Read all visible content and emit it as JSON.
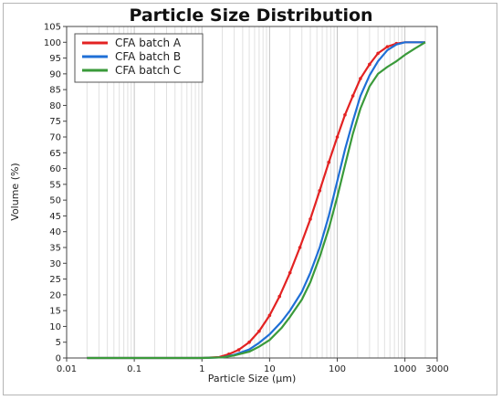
{
  "chart_data": {
    "type": "line",
    "title": "Particle Size Distribution",
    "xlabel": "Particle Size (µm)",
    "ylabel": "Volume (%)",
    "x_scale": "log",
    "xlim": [
      0.01,
      3000
    ],
    "ylim": [
      0,
      105
    ],
    "x_ticks": [
      {
        "value": 0.01,
        "label": "0.01"
      },
      {
        "value": 0.1,
        "label": "0.1"
      },
      {
        "value": 1,
        "label": "1"
      },
      {
        "value": 10,
        "label": "10"
      },
      {
        "value": 100,
        "label": "100"
      },
      {
        "value": 1000,
        "label": "1000"
      },
      {
        "value": 3000,
        "label": "3000"
      }
    ],
    "y_ticks": [
      0,
      5,
      10,
      15,
      20,
      25,
      30,
      35,
      40,
      45,
      50,
      55,
      60,
      65,
      70,
      75,
      80,
      85,
      90,
      95,
      100,
      105
    ],
    "grid": "vertical",
    "legend_position": "top-left",
    "series": [
      {
        "name": "CFA batch A",
        "color": "#e32222",
        "markers": true,
        "points": [
          [
            0.02,
            0
          ],
          [
            1,
            0
          ],
          [
            1.8,
            0.3
          ],
          [
            2.5,
            1.2
          ],
          [
            3.5,
            2.6
          ],
          [
            5,
            5
          ],
          [
            7,
            8.5
          ],
          [
            10,
            13.5
          ],
          [
            14,
            19.5
          ],
          [
            20,
            27
          ],
          [
            28,
            35
          ],
          [
            40,
            44
          ],
          [
            55,
            53
          ],
          [
            75,
            62
          ],
          [
            100,
            70
          ],
          [
            130,
            77
          ],
          [
            170,
            83
          ],
          [
            220,
            88.5
          ],
          [
            300,
            93
          ],
          [
            400,
            96.5
          ],
          [
            550,
            98.6
          ],
          [
            750,
            99.6
          ],
          [
            1000,
            100
          ],
          [
            2000,
            100
          ]
        ]
      },
      {
        "name": "CFA batch B",
        "color": "#1f6fd6",
        "markers": false,
        "points": [
          [
            0.02,
            0
          ],
          [
            1,
            0
          ],
          [
            2,
            0.2
          ],
          [
            3,
            1
          ],
          [
            5,
            2.7
          ],
          [
            7,
            4.8
          ],
          [
            10,
            7.5
          ],
          [
            15,
            11.5
          ],
          [
            20,
            15
          ],
          [
            30,
            21
          ],
          [
            40,
            27
          ],
          [
            55,
            35
          ],
          [
            75,
            45
          ],
          [
            100,
            56
          ],
          [
            130,
            66
          ],
          [
            170,
            75
          ],
          [
            220,
            83
          ],
          [
            300,
            89.5
          ],
          [
            400,
            94
          ],
          [
            550,
            97.5
          ],
          [
            750,
            99.3
          ],
          [
            1000,
            100
          ],
          [
            2000,
            100
          ]
        ]
      },
      {
        "name": "CFA batch C",
        "color": "#3a9a3a",
        "markers": false,
        "points": [
          [
            0.02,
            0
          ],
          [
            1,
            0
          ],
          [
            2,
            0.2
          ],
          [
            3,
            0.8
          ],
          [
            5,
            2
          ],
          [
            7,
            3.6
          ],
          [
            10,
            5.7
          ],
          [
            15,
            9.5
          ],
          [
            20,
            13
          ],
          [
            30,
            18.5
          ],
          [
            40,
            24
          ],
          [
            55,
            32
          ],
          [
            75,
            41
          ],
          [
            100,
            51
          ],
          [
            130,
            61
          ],
          [
            170,
            71
          ],
          [
            220,
            79
          ],
          [
            300,
            86
          ],
          [
            400,
            90
          ],
          [
            550,
            92.2
          ],
          [
            750,
            94
          ],
          [
            1000,
            96
          ],
          [
            1400,
            98
          ],
          [
            2000,
            100
          ]
        ]
      }
    ]
  }
}
